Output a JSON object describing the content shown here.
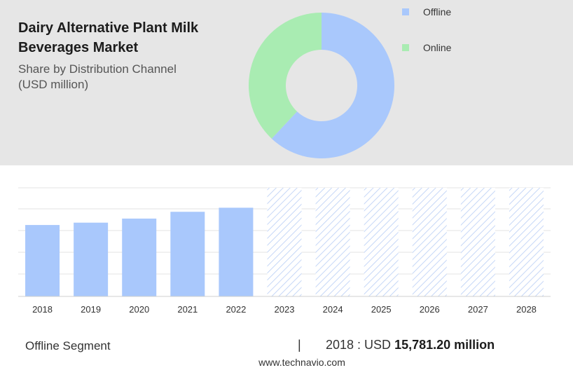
{
  "header": {
    "title": "Dairy Alternative Plant Milk Beverages Market",
    "subtitle_line1": "Share by Distribution Channel",
    "subtitle_line2": "(USD million)"
  },
  "legend": [
    {
      "label": "Offline",
      "color": "#a9c8fc"
    },
    {
      "label": "Online",
      "color": "#a9ecb2"
    }
  ],
  "footer": {
    "segment_label": "Offline Segment",
    "divider": "|",
    "stat_prefix": "2018 : USD",
    "stat_value": "15,781.20 million",
    "source": "www.technavio.com"
  },
  "colors": {
    "offline": "#a9c8fc",
    "online": "#a9ecb2",
    "forecast_hatch": "#c6d7f7",
    "grid": "#e3e3e3"
  },
  "chart_data": [
    {
      "type": "pie",
      "title": "Share by Distribution Channel",
      "donut": true,
      "categories": [
        "Offline",
        "Online"
      ],
      "values": [
        62,
        38
      ],
      "colors": [
        "#a9c8fc",
        "#a9ecb2"
      ]
    },
    {
      "type": "bar",
      "categories": [
        "2018",
        "2019",
        "2020",
        "2021",
        "2022",
        "2023",
        "2024",
        "2025",
        "2026",
        "2027",
        "2028"
      ],
      "series": [
        {
          "values": [
            15781.2,
            16300,
            17200,
            18700,
            19600,
            null,
            null,
            null,
            null,
            null,
            null
          ]
        }
      ],
      "forecast": [
        false,
        false,
        false,
        false,
        false,
        true,
        true,
        true,
        true,
        true,
        true
      ],
      "forecast_bar_level": 24000,
      "ylim": [
        0,
        24000
      ],
      "grid": true
    }
  ]
}
